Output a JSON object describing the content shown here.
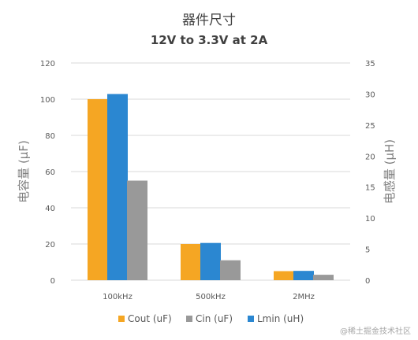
{
  "chart_data": {
    "type": "bar",
    "title": "器件尺寸",
    "subtitle": "12V to 3.3V at 2A",
    "categories": [
      "100kHz",
      "500kHz",
      "2MHz"
    ],
    "ylabel_left": "电容量 (μF)",
    "ylabel_right": "电感量 (μH)",
    "ylim_left": [
      0,
      120
    ],
    "ylim_right": [
      0,
      35
    ],
    "yticks_left": [
      "0",
      "20",
      "40",
      "60",
      "80",
      "100",
      "120"
    ],
    "yticks_right": [
      "0",
      "5",
      "10",
      "15",
      "20",
      "25",
      "30",
      "35"
    ],
    "grid": true,
    "legend_position": "bottom",
    "series": [
      {
        "name": "Cout (uF)",
        "axis": "left",
        "color": "#f5a623",
        "values": [
          100,
          20,
          5
        ]
      },
      {
        "name": "Cin (uF)",
        "axis": "left",
        "color": "#999999",
        "values": [
          55,
          11,
          3
        ]
      },
      {
        "name": "Lmin (uH)",
        "axis": "right",
        "color": "#2b87d1",
        "values": [
          30,
          6,
          1.5
        ]
      }
    ]
  },
  "watermark": "@稀土掘金技术社区"
}
